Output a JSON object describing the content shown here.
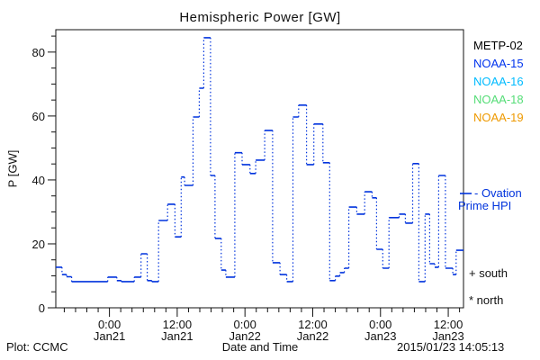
{
  "chart": {
    "title": "Hemispheric Power [GW]",
    "ylabel": "P [GW]",
    "xlabel": "Date and Time"
  },
  "footer": {
    "plot_credit": "Plot: CCMC",
    "axis_title": "Date and Time",
    "timestamp": "2015/01/23 14:05:13"
  },
  "legend": {
    "satellites": [
      {
        "label": "METP-02",
        "color": "#000000"
      },
      {
        "label": "NOAA-15",
        "color": "#0033ee"
      },
      {
        "label": "NOAA-16",
        "color": "#00bbff"
      },
      {
        "label": "NOAA-18",
        "color": "#55dd77"
      },
      {
        "label": "NOAA-19",
        "color": "#ee9900"
      }
    ],
    "ovation_line1": "- Ovation",
    "ovation_line2": "Prime HPI",
    "south_marker": "+ south",
    "north_marker": "* north"
  },
  "chart_data": {
    "type": "line",
    "subtype": "step-dotted",
    "title": "Hemispheric Power [GW]",
    "xlabel": "Date and Time",
    "ylabel": "P [GW]",
    "line_color": "#0033dd",
    "axis_color": "#111111",
    "x_unit": "hours since 2015-01-20 00:00 UT",
    "x_range": [
      14.5,
      86.7
    ],
    "y_range": [
      0,
      87
    ],
    "y_major_ticks": [
      0,
      20,
      40,
      60,
      80
    ],
    "y_minor_step": 5,
    "x_minor_step_hours": 2,
    "x_major_ticks": [
      {
        "hour": 24,
        "time": "0:00",
        "date": "Jan21"
      },
      {
        "hour": 36,
        "time": "12:00",
        "date": "Jan21"
      },
      {
        "hour": 48,
        "time": "0:00",
        "date": "Jan22"
      },
      {
        "hour": 60,
        "time": "12:00",
        "date": "Jan22"
      },
      {
        "hour": 72,
        "time": "0:00",
        "date": "Jan23"
      },
      {
        "hour": 84,
        "time": "12:00",
        "date": "Jan23"
      }
    ],
    "t_end": 86.7,
    "steps": [
      [
        14.5,
        12.7
      ],
      [
        15.6,
        10.4
      ],
      [
        16.4,
        9.7
      ],
      [
        17.3,
        8.2
      ],
      [
        23.7,
        9.6
      ],
      [
        25.3,
        8.5
      ],
      [
        26.1,
        8.2
      ],
      [
        28.4,
        9.6
      ],
      [
        29.6,
        16.9
      ],
      [
        30.7,
        8.5
      ],
      [
        31.5,
        8.2
      ],
      [
        32.7,
        27.3
      ],
      [
        34.3,
        32.4
      ],
      [
        35.6,
        22.2
      ],
      [
        36.7,
        40.9
      ],
      [
        37.3,
        38.3
      ],
      [
        38.8,
        59.7
      ],
      [
        39.9,
        68.7
      ],
      [
        40.7,
        84.5
      ],
      [
        41.9,
        41.4
      ],
      [
        42.7,
        21.7
      ],
      [
        43.8,
        11.8
      ],
      [
        44.6,
        9.6
      ],
      [
        46.2,
        48.5
      ],
      [
        47.5,
        44.8
      ],
      [
        48.9,
        42.0
      ],
      [
        49.9,
        46.2
      ],
      [
        51.5,
        55.5
      ],
      [
        52.9,
        14.1
      ],
      [
        54.2,
        10.4
      ],
      [
        55.4,
        8.2
      ],
      [
        56.5,
        59.7
      ],
      [
        57.5,
        63.4
      ],
      [
        58.9,
        44.8
      ],
      [
        60.2,
        57.5
      ],
      [
        61.8,
        45.4
      ],
      [
        63.0,
        8.5
      ],
      [
        64.0,
        9.9
      ],
      [
        64.8,
        11.0
      ],
      [
        65.6,
        12.4
      ],
      [
        66.4,
        31.5
      ],
      [
        67.8,
        29.3
      ],
      [
        69.2,
        36.3
      ],
      [
        70.5,
        34.4
      ],
      [
        71.3,
        18.3
      ],
      [
        72.4,
        12.4
      ],
      [
        73.5,
        28.2
      ],
      [
        75.3,
        29.3
      ],
      [
        76.4,
        26.5
      ],
      [
        77.7,
        45.1
      ],
      [
        78.8,
        8.2
      ],
      [
        79.9,
        29.3
      ],
      [
        80.7,
        13.8
      ],
      [
        81.6,
        12.7
      ],
      [
        82.3,
        41.4
      ],
      [
        83.5,
        12.4
      ],
      [
        84.8,
        10.4
      ],
      [
        85.4,
        18.0
      ]
    ]
  },
  "geometry_note": "plot frame left 62, right 515, top 33, bottom 342"
}
